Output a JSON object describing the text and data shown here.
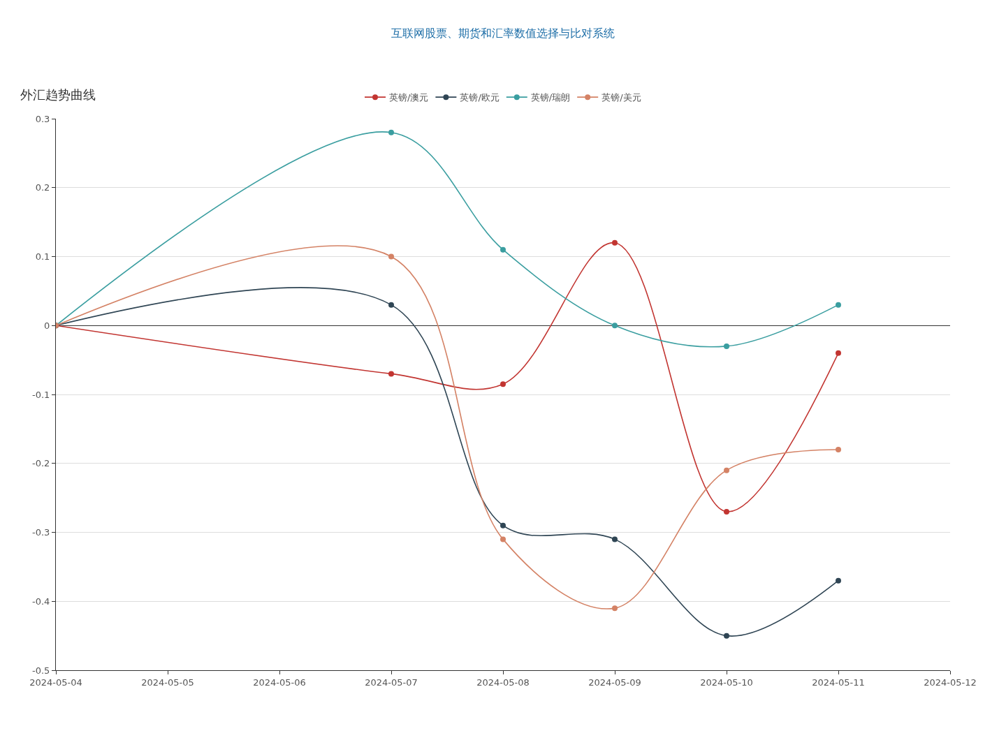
{
  "chart_data": {
    "type": "line",
    "title": "外汇趋势曲线",
    "subtitle": "互联网股票、期货和汇率数值选择与比对系统",
    "x": [
      "2024-05-04",
      "2024-05-07",
      "2024-05-08",
      "2024-05-09",
      "2024-05-10",
      "2024-05-11"
    ],
    "series": [
      {
        "name": "英镑/澳元",
        "color": "#c23531",
        "values": [
          0,
          -0.07,
          -0.085,
          0.12,
          -0.27,
          -0.04
        ]
      },
      {
        "name": "英镑/欧元",
        "color": "#2f4554",
        "values": [
          0,
          0.03,
          -0.29,
          -0.31,
          -0.45,
          -0.37
        ]
      },
      {
        "name": "英镑/瑞朗",
        "color": "#3a9ea0",
        "values": [
          0,
          0.28,
          0.11,
          0,
          -0.03,
          0.03
        ]
      },
      {
        "name": "英镑/美元",
        "color": "#d48265",
        "values": [
          0,
          0.1,
          -0.31,
          -0.41,
          -0.21,
          -0.18
        ]
      }
    ],
    "xlim": [
      "2024-05-04",
      "2024-05-12"
    ],
    "xticks": [
      "2024-05-04",
      "2024-05-05",
      "2024-05-06",
      "2024-05-07",
      "2024-05-08",
      "2024-05-09",
      "2024-05-10",
      "2024-05-11",
      "2024-05-12"
    ],
    "ylim": [
      -0.5,
      0.3
    ],
    "yticks": [
      -0.5,
      -0.4,
      -0.3,
      -0.2,
      -0.1,
      0,
      0.1,
      0.2,
      0.3
    ],
    "grid": "y",
    "legend": "top",
    "marker": "circle",
    "line_style": "solid"
  }
}
